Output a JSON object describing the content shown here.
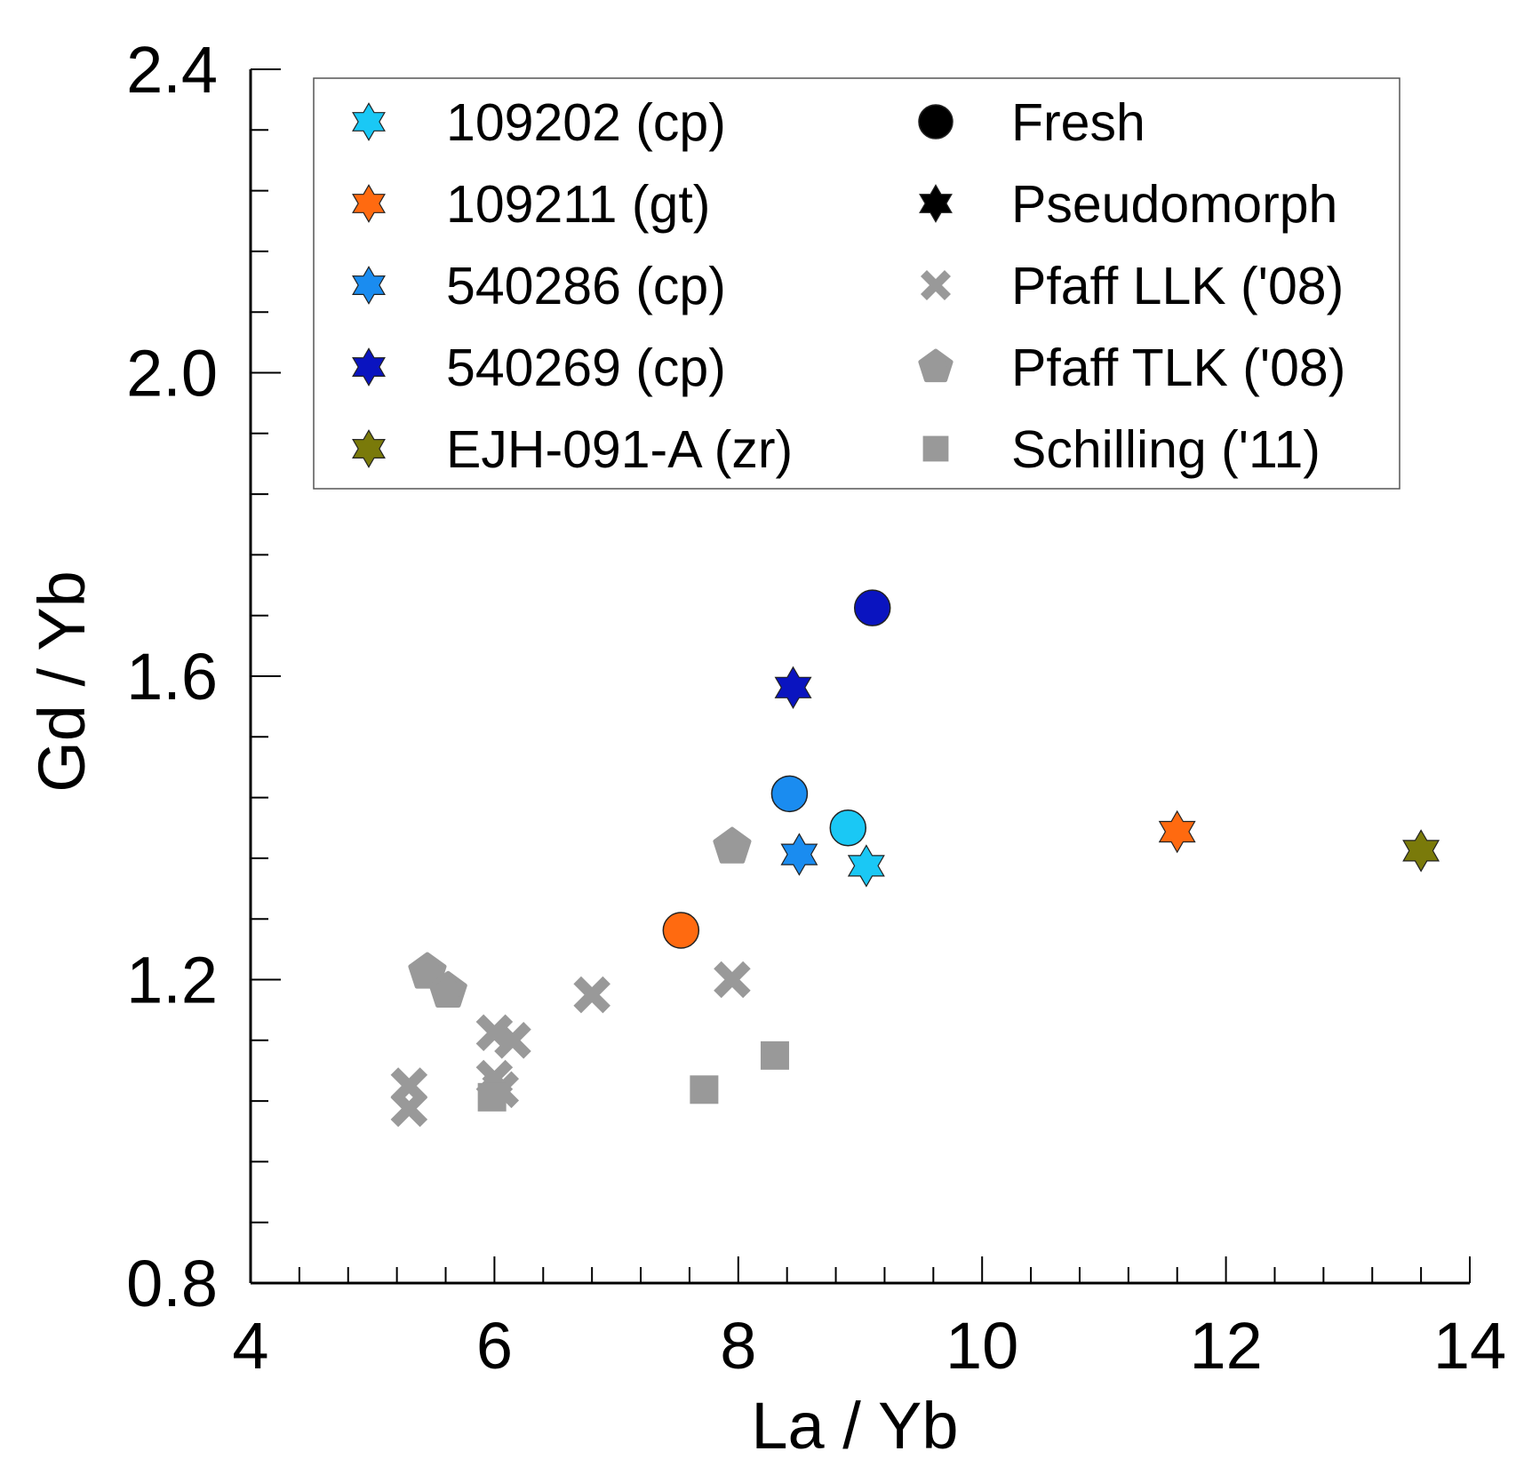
{
  "chart_data": {
    "type": "scatter",
    "title": "",
    "xlabel": "La / Yb",
    "ylabel": "Gd / Yb",
    "xlim": [
      4,
      14
    ],
    "ylim": [
      0.8,
      2.4
    ],
    "xticks": [
      "4",
      "6",
      "8",
      "10",
      "12",
      "14"
    ],
    "yticks": [
      "0.8",
      "1.2",
      "1.6",
      "2.0",
      "2.4"
    ],
    "xtick_values": [
      4,
      6,
      8,
      10,
      12,
      14
    ],
    "ytick_values": [
      0.8,
      1.2,
      1.6,
      2.0,
      2.4
    ],
    "x_minor_step": 0.4,
    "y_minor_step": 0.08,
    "grid": false,
    "legend_position": "top",
    "legend": [
      {
        "label": "109202 (cp)",
        "marker": "star",
        "color": "#1ac8f5"
      },
      {
        "label": "Fresh",
        "marker": "circle",
        "color": "#000000"
      },
      {
        "label": "109211 (gt)",
        "marker": "star",
        "color": "#ff6a10"
      },
      {
        "label": "Pseudomorph",
        "marker": "star",
        "color": "#000000"
      },
      {
        "label": "540286 (cp)",
        "marker": "star",
        "color": "#1a8cf0"
      },
      {
        "label": "Pfaff LLK ('08)",
        "marker": "x",
        "color": "#999999"
      },
      {
        "label": "540269 (cp)",
        "marker": "star",
        "color": "#0a14c0"
      },
      {
        "label": "Pfaff TLK ('08)",
        "marker": "pentagon",
        "color": "#999999"
      },
      {
        "label": "EJH-091-A (zr)",
        "marker": "star",
        "color": "#7a7a0a"
      },
      {
        "label": "Schilling ('11)",
        "marker": "square",
        "color": "#999999"
      }
    ],
    "series": [
      {
        "name": "Pfaff LLK ('08)",
        "marker": "x",
        "color": "#999999",
        "points": [
          [
            5.3,
            1.06
          ],
          [
            5.3,
            1.03
          ],
          [
            6.0,
            1.13
          ],
          [
            6.15,
            1.12
          ],
          [
            6.0,
            1.07
          ],
          [
            6.05,
            1.055
          ],
          [
            6.8,
            1.18
          ],
          [
            7.95,
            1.2
          ]
        ]
      },
      {
        "name": "Pfaff TLK ('08)",
        "marker": "pentagon",
        "color": "#999999",
        "points": [
          [
            5.45,
            1.21
          ],
          [
            5.62,
            1.185
          ],
          [
            7.95,
            1.375
          ]
        ]
      },
      {
        "name": "Schilling ('11)",
        "marker": "square",
        "color": "#999999",
        "points": [
          [
            5.98,
            1.045
          ],
          [
            7.72,
            1.055
          ],
          [
            8.3,
            1.1
          ]
        ]
      },
      {
        "name": "109211 (gt) Fresh",
        "marker": "circle",
        "color": "#ff6a10",
        "points": [
          [
            7.53,
            1.265
          ]
        ]
      },
      {
        "name": "540286 (cp) Fresh",
        "marker": "circle",
        "color": "#1a8cf0",
        "points": [
          [
            8.42,
            1.445
          ]
        ]
      },
      {
        "name": "109202 (cp) Fresh",
        "marker": "circle",
        "color": "#1ac8f5",
        "points": [
          [
            8.9,
            1.4
          ]
        ]
      },
      {
        "name": "540269 (cp) Fresh",
        "marker": "circle",
        "color": "#0a14c0",
        "points": [
          [
            9.1,
            1.69
          ]
        ]
      },
      {
        "name": "540269 (cp) Pseudomorph",
        "marker": "star",
        "color": "#0a14c0",
        "points": [
          [
            8.45,
            1.585
          ]
        ]
      },
      {
        "name": "540286 (cp) Pseudomorph",
        "marker": "star",
        "color": "#1a8cf0",
        "points": [
          [
            8.5,
            1.365
          ]
        ]
      },
      {
        "name": "109202 (cp) Pseudomorph",
        "marker": "star",
        "color": "#1ac8f5",
        "points": [
          [
            9.05,
            1.35
          ]
        ]
      },
      {
        "name": "109211 (gt) Pseudomorph",
        "marker": "star",
        "color": "#ff6a10",
        "points": [
          [
            11.6,
            1.395
          ]
        ]
      },
      {
        "name": "EJH-091-A (zr) Pseudomorph",
        "marker": "star",
        "color": "#7a7a0a",
        "points": [
          [
            13.6,
            1.37
          ]
        ]
      }
    ]
  }
}
